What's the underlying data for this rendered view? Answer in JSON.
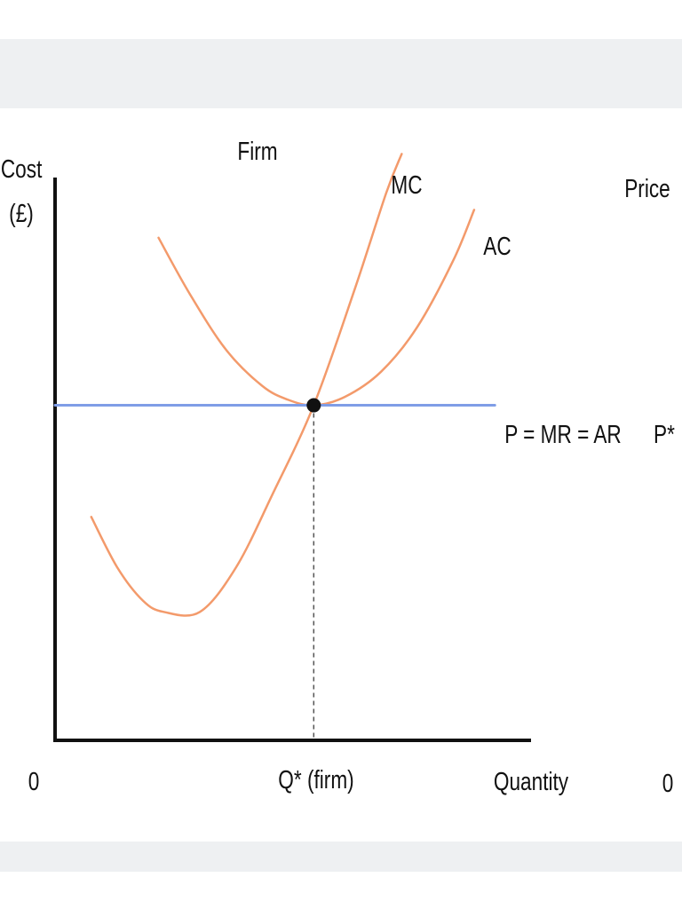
{
  "chart_data": {
    "type": "line",
    "title": "Firm",
    "ylabel_line1": "Cost",
    "ylabel_line2": "(£)",
    "xlabel": "Quantity",
    "origin_label": "0",
    "right_panel": {
      "ylabel": "Price",
      "origin_label": "0",
      "price_label": "P*"
    },
    "x_ticks": [
      "Q* (firm)"
    ],
    "equilibrium": {
      "label_x": "Q* (firm)",
      "label_y": "P*",
      "q": 5,
      "p": 6
    },
    "xlim": [
      0,
      9.2
    ],
    "ylim": [
      0,
      11
    ],
    "series": [
      {
        "name": "MC",
        "color": "#f39a6b",
        "points": [
          [
            0.7,
            4.0
          ],
          [
            1.2,
            3.1
          ],
          [
            1.7,
            2.5
          ],
          [
            2.1,
            2.3
          ],
          [
            2.8,
            2.3
          ],
          [
            3.5,
            3.1
          ],
          [
            4.2,
            4.4
          ],
          [
            5.0,
            6.0
          ],
          [
            5.8,
            8.1
          ],
          [
            6.4,
            9.8
          ],
          [
            6.7,
            10.5
          ]
        ]
      },
      {
        "name": "AC",
        "color": "#f39a6b",
        "points": [
          [
            2.0,
            9.0
          ],
          [
            2.6,
            8.0
          ],
          [
            3.3,
            7.0
          ],
          [
            4.0,
            6.35
          ],
          [
            4.5,
            6.1
          ],
          [
            5.0,
            6.0
          ],
          [
            5.6,
            6.15
          ],
          [
            6.3,
            6.6
          ],
          [
            7.0,
            7.4
          ],
          [
            7.7,
            8.6
          ],
          [
            8.1,
            9.5
          ]
        ]
      },
      {
        "name": "P = MR = AR",
        "color": "#7f9de6",
        "points": [
          [
            0,
            6.0
          ],
          [
            8.5,
            6.0
          ]
        ]
      }
    ],
    "grid": false,
    "legend": "none"
  }
}
